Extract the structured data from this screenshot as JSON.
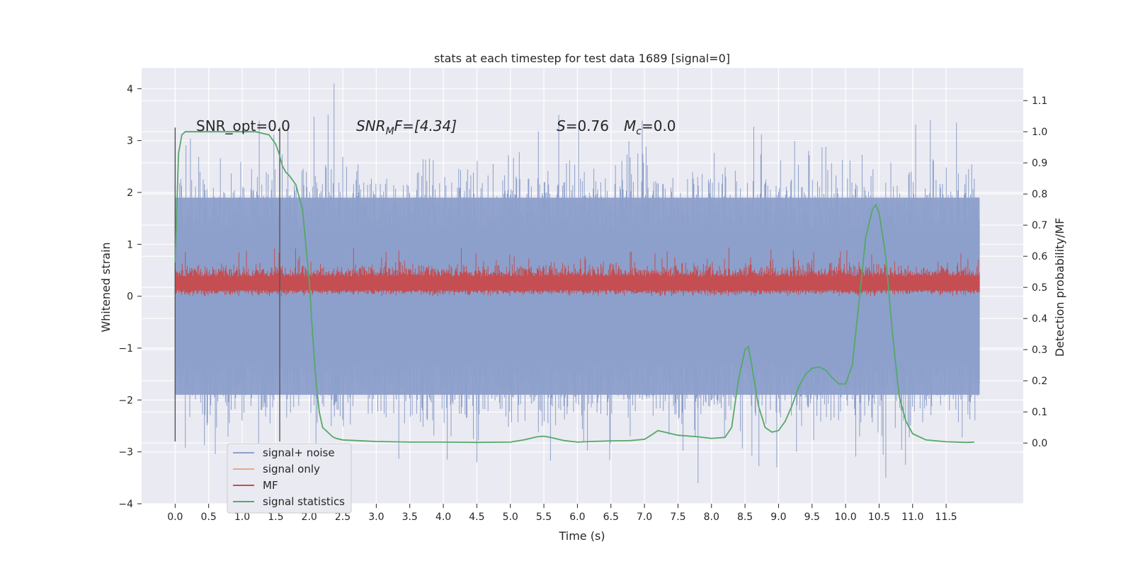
{
  "chart_data": {
    "type": "line",
    "title": "stats at each timestep for test data 1689 [signal=0]",
    "xlabel": "Time (s)",
    "ylabel_left": "Whitened strain",
    "ylabel_right": "Detection probability/MF",
    "xlim": [
      -0.5,
      12.65
    ],
    "ylim_left": [
      -4.0,
      4.4
    ],
    "ylim_right": [
      -0.195,
      1.205
    ],
    "grid": true,
    "xticks": [
      "0.0",
      "0.5",
      "1.0",
      "1.5",
      "2.0",
      "2.5",
      "3.0",
      "3.5",
      "4.0",
      "4.5",
      "5.0",
      "5.5",
      "6.0",
      "6.5",
      "7.0",
      "7.5",
      "8.0",
      "8.5",
      "9.0",
      "9.5",
      "10.0",
      "10.5",
      "11.0",
      "11.5"
    ],
    "yticks_left": [
      "4",
      "3",
      "2",
      "1",
      "0",
      "−1",
      "−2",
      "−3",
      "−4"
    ],
    "yticks_right": [
      "1.1",
      "1.0",
      "0.9",
      "0.8",
      "0.7",
      "0.6",
      "0.5",
      "0.4",
      "0.3",
      "0.2",
      "0.1",
      "0.0"
    ],
    "annotations": {
      "snr_opt": "SNR_opt=0.0",
      "snr_mf_label": "SNR",
      "snr_mf_sub": "M",
      "snr_mf_rest": "F=[4.34]",
      "s_label": "S",
      "s_value": "=0.76",
      "mc_label": "M",
      "mc_sub": "c",
      "mc_value": "=0.0"
    },
    "markers_x": [
      0.0,
      1.56
    ],
    "marker_ylim": [
      -2.8,
      3.25
    ],
    "series": [
      {
        "name": "signal+ noise",
        "color": "#8da0cb",
        "axis": "left",
        "x_range": [
          0.0,
          12.0
        ],
        "envelope": {
          "low": -1.9,
          "high": 1.9,
          "peak_max": 4.1,
          "peak_min": -3.6
        }
      },
      {
        "name": "signal only",
        "color": "#e8a68a",
        "axis": "left",
        "values": []
      },
      {
        "name": "MF",
        "color": "#c44e52",
        "axis": "left",
        "x_range": [
          0.0,
          12.0
        ],
        "envelope": {
          "low": 0.05,
          "high": 0.55,
          "peak_max": 1.0
        }
      },
      {
        "name": "signal statistics",
        "color": "#55a868",
        "axis": "right",
        "x": [
          0.0,
          0.05,
          0.1,
          0.15,
          0.2,
          0.3,
          0.5,
          0.8,
          1.0,
          1.2,
          1.4,
          1.5,
          1.55,
          1.6,
          1.65,
          1.7,
          1.8,
          1.9,
          2.0,
          2.05,
          2.1,
          2.15,
          2.2,
          2.3,
          2.35,
          2.4,
          2.5,
          2.7,
          3.0,
          3.5,
          4.0,
          4.5,
          5.0,
          5.2,
          5.4,
          5.5,
          5.6,
          5.8,
          6.0,
          6.2,
          6.5,
          6.8,
          7.0,
          7.1,
          7.2,
          7.3,
          7.5,
          7.8,
          8.0,
          8.2,
          8.3,
          8.4,
          8.5,
          8.55,
          8.6,
          8.7,
          8.8,
          8.9,
          9.0,
          9.1,
          9.2,
          9.3,
          9.4,
          9.5,
          9.6,
          9.7,
          9.8,
          9.9,
          10.0,
          10.1,
          10.2,
          10.3,
          10.4,
          10.45,
          10.5,
          10.6,
          10.7,
          10.8,
          10.9,
          11.0,
          11.2,
          11.5,
          11.8,
          11.92
        ],
        "values": [
          0.58,
          0.93,
          0.99,
          1.0,
          1.0,
          1.0,
          1.0,
          1.0,
          1.0,
          1.0,
          0.99,
          0.96,
          0.93,
          0.89,
          0.87,
          0.86,
          0.83,
          0.75,
          0.52,
          0.35,
          0.2,
          0.1,
          0.05,
          0.03,
          0.02,
          0.015,
          0.01,
          0.008,
          0.005,
          0.003,
          0.003,
          0.002,
          0.003,
          0.01,
          0.02,
          0.022,
          0.018,
          0.008,
          0.003,
          0.005,
          0.007,
          0.008,
          0.012,
          0.025,
          0.04,
          0.035,
          0.025,
          0.02,
          0.015,
          0.018,
          0.05,
          0.2,
          0.3,
          0.31,
          0.25,
          0.12,
          0.05,
          0.035,
          0.04,
          0.07,
          0.12,
          0.18,
          0.22,
          0.24,
          0.245,
          0.235,
          0.21,
          0.19,
          0.19,
          0.25,
          0.45,
          0.66,
          0.75,
          0.765,
          0.74,
          0.6,
          0.35,
          0.15,
          0.07,
          0.03,
          0.01,
          0.004,
          0.002,
          0.003
        ]
      }
    ]
  }
}
